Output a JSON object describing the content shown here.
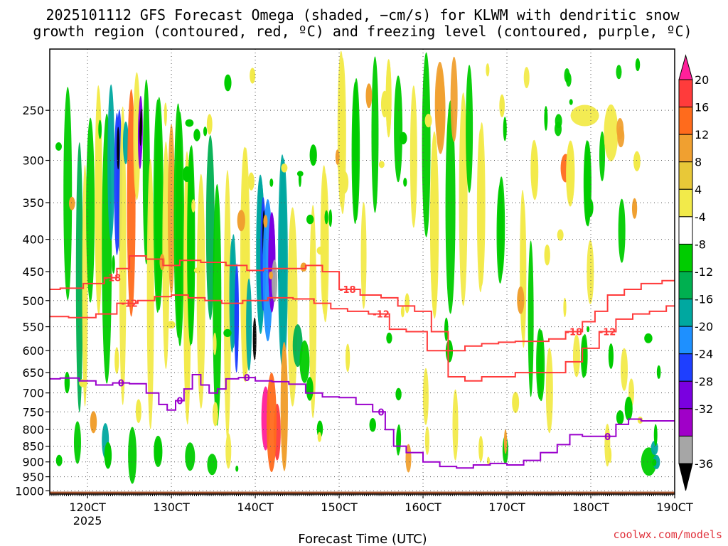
{
  "chart_data": {
    "type": "heatmap",
    "title": "2025101112 GFS Forecast Omega (shaded, −cm/s) for KLWM with dendritic snow growth region (contoured, red, ºC) and freezing level (contoured, purple, ºC)",
    "title_lines": [
      "2025101112 GFS Forecast Omega (shaded, −cm/s) for KLWM with dendritic snow",
      "growth region (contoured, red, ºC) and freezing level (contoured, purple, ºC)"
    ],
    "xlabel": "Forecast Time (UTC)",
    "x_ticks": [
      {
        "label": "120CT",
        "sub": "2025",
        "x": 120
      },
      {
        "label": "130CT",
        "sub": "",
        "x": 130
      },
      {
        "label": "140CT",
        "sub": "",
        "x": 140
      },
      {
        "label": "150CT",
        "sub": "",
        "x": 150
      },
      {
        "label": "160CT",
        "sub": "",
        "x": 160
      },
      {
        "label": "170CT",
        "sub": "",
        "x": 170
      },
      {
        "label": "180CT",
        "sub": "",
        "x": 180
      },
      {
        "label": "190CT",
        "sub": "",
        "x": 190
      }
    ],
    "xlim": [
      115.5,
      190
    ],
    "ylabel": "",
    "y_ticks": [
      250,
      300,
      350,
      400,
      450,
      500,
      550,
      600,
      650,
      700,
      750,
      800,
      850,
      900,
      950,
      1000
    ],
    "ylim": [
      200,
      1012
    ],
    "y_scale": "log",
    "grid": true,
    "surface_pressure": 1003,
    "colorbar": {
      "labels": [
        "20",
        "16",
        "12",
        "8",
        "4",
        "-4",
        "-8",
        "-12",
        "-16",
        "-20",
        "-24",
        "-28",
        "-32",
        "-36"
      ],
      "levels": [
        20,
        16,
        12,
        8,
        4,
        -4,
        -8,
        -12,
        -16,
        -20,
        -24,
        -28,
        -32,
        -36
      ],
      "colors": [
        "#ff1f9a",
        "#ff3b3b",
        "#ff6b1c",
        "#f0a030",
        "#e8c838",
        "#f2ea4a",
        "#ffffff",
        "#00cc00",
        "#00b050",
        "#00a8a0",
        "#1e90ff",
        "#1e3fff",
        "#7a00e0",
        "#a000c8",
        "#a6a6a6",
        "#000000"
      ]
    },
    "series": [
      {
        "name": "-18",
        "color": "#ff3b3b",
        "points": [
          [
            115.5,
            480
          ],
          [
            118,
            478
          ],
          [
            121,
            470
          ],
          [
            123,
            460
          ],
          [
            124,
            445
          ],
          [
            126,
            425
          ],
          [
            128,
            430
          ],
          [
            130,
            440
          ],
          [
            132,
            432
          ],
          [
            135,
            435
          ],
          [
            138,
            440
          ],
          [
            140,
            448
          ],
          [
            142,
            445
          ],
          [
            145,
            445
          ],
          [
            147,
            440
          ],
          [
            149,
            450
          ],
          [
            151,
            480
          ],
          [
            154,
            490
          ],
          [
            156,
            495
          ],
          [
            158,
            510
          ],
          [
            160,
            520
          ],
          [
            162,
            560
          ],
          [
            164,
            600
          ],
          [
            166,
            590
          ],
          [
            168,
            585
          ],
          [
            170,
            582
          ],
          [
            172,
            580
          ],
          [
            174,
            580
          ],
          [
            176,
            575
          ],
          [
            178,
            560
          ],
          [
            180,
            540
          ],
          [
            181,
            520
          ],
          [
            183,
            490
          ],
          [
            185,
            480
          ],
          [
            187,
            470
          ],
          [
            190,
            465
          ]
        ]
      },
      {
        "name": "-12",
        "color": "#ff3b3b",
        "points": [
          [
            115.5,
            530
          ],
          [
            120,
            532
          ],
          [
            122,
            525
          ],
          [
            125,
            505
          ],
          [
            127,
            500
          ],
          [
            129,
            493
          ],
          [
            131,
            490
          ],
          [
            133,
            495
          ],
          [
            135,
            500
          ],
          [
            137,
            505
          ],
          [
            140,
            500
          ],
          [
            143,
            495
          ],
          [
            146,
            497
          ],
          [
            148,
            505
          ],
          [
            150,
            515
          ],
          [
            152,
            520
          ],
          [
            155,
            525
          ],
          [
            157,
            555
          ],
          [
            159,
            560
          ],
          [
            162,
            600
          ],
          [
            164,
            660
          ],
          [
            166,
            670
          ],
          [
            168,
            660
          ],
          [
            170,
            660
          ],
          [
            172,
            650
          ],
          [
            174,
            650
          ],
          [
            176,
            650
          ],
          [
            178,
            625
          ],
          [
            180,
            595
          ],
          [
            182,
            560
          ],
          [
            184,
            535
          ],
          [
            186,
            525
          ],
          [
            188,
            520
          ],
          [
            190,
            510
          ]
        ]
      },
      {
        "name": "0",
        "color": "#9a00cc",
        "points": [
          [
            115.5,
            665
          ],
          [
            118,
            663
          ],
          [
            120,
            670
          ],
          [
            122,
            680
          ],
          [
            124,
            675
          ],
          [
            126,
            677
          ],
          [
            128,
            700
          ],
          [
            129,
            730
          ],
          [
            130,
            745
          ],
          [
            131,
            720
          ],
          [
            132,
            690
          ],
          [
            133,
            655
          ],
          [
            134,
            680
          ],
          [
            135,
            700
          ],
          [
            136,
            690
          ],
          [
            137,
            665
          ],
          [
            139,
            662
          ],
          [
            141,
            670
          ],
          [
            143,
            672
          ],
          [
            145,
            678
          ],
          [
            147,
            700
          ],
          [
            149,
            710
          ],
          [
            151,
            712
          ],
          [
            153,
            730
          ],
          [
            155,
            750
          ],
          [
            156,
            800
          ],
          [
            157,
            850
          ],
          [
            159,
            870
          ],
          [
            161,
            900
          ],
          [
            163,
            915
          ],
          [
            165,
            920
          ],
          [
            167,
            910
          ],
          [
            169,
            905
          ],
          [
            171,
            910
          ],
          [
            173,
            895
          ],
          [
            175,
            870
          ],
          [
            177,
            845
          ],
          [
            178,
            815
          ],
          [
            180,
            820
          ],
          [
            182,
            820
          ],
          [
            184,
            785
          ],
          [
            185,
            770
          ],
          [
            187,
            775
          ],
          [
            190,
            775
          ]
        ]
      }
    ]
  }
}
